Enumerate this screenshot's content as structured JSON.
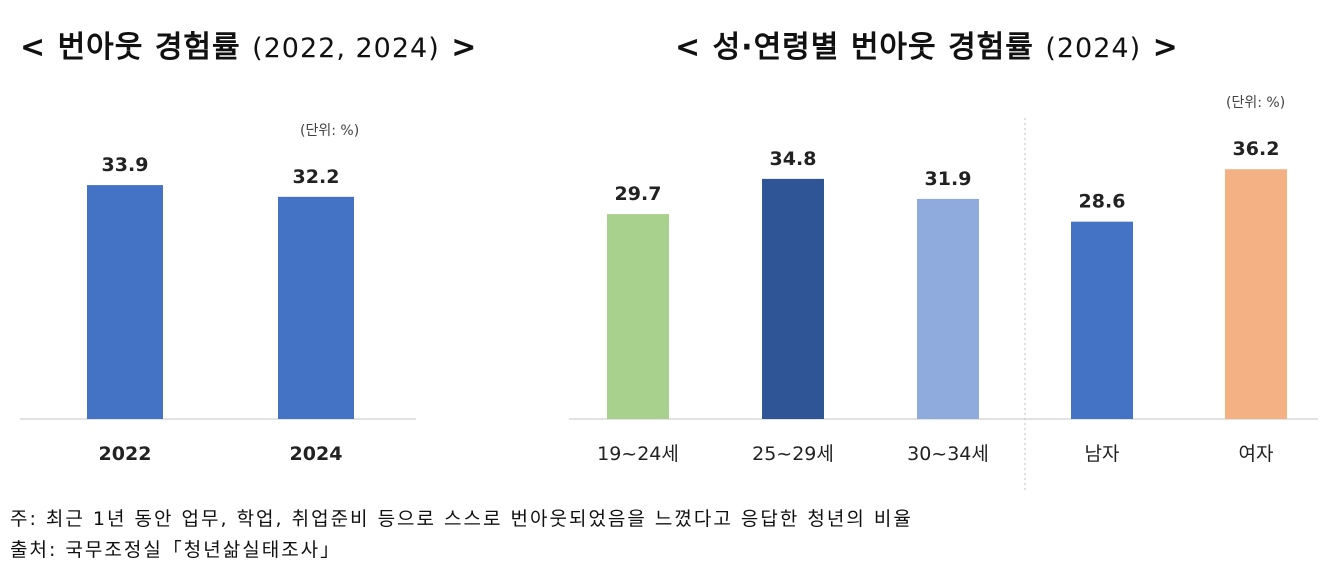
{
  "titles": {
    "left_main": "< 번아웃 경험률",
    "left_year": "(2022, 2024)",
    "left_close": ">",
    "right_main": "< 성·연령별 번아웃 경험률",
    "right_year": "(2024)",
    "right_close": ">"
  },
  "units": {
    "left": "(단위: %)",
    "right": "(단위: %)"
  },
  "chart_data": [
    {
      "type": "bar",
      "title": "< 번아웃 경험률 (2022, 2024) >",
      "categories": [
        "2022",
        "2024"
      ],
      "values": [
        33.9,
        32.2
      ],
      "colors": [
        "#4472C4",
        "#4472C4"
      ],
      "unit": "(단위: %)",
      "ylim": [
        0,
        40
      ],
      "grid": false
    },
    {
      "type": "bar",
      "title": "< 성·연령별 번아웃 경험률 (2024) >",
      "categories": [
        "19~24세",
        "25~29세",
        "30~34세",
        "남자",
        "여자"
      ],
      "values": [
        29.7,
        34.8,
        31.9,
        28.6,
        36.2
      ],
      "colors": [
        "#A9D18E",
        "#2F5597",
        "#8FAADC",
        "#4472C4",
        "#F4B183"
      ],
      "unit": "(단위: %)",
      "ylim": [
        0,
        40
      ],
      "grid": false
    }
  ],
  "footnotes": {
    "note": "주: 최근 1년 동안 업무, 학업, 취업준비 등으로 스스로 번아웃되었음을 느꼈다고 응답한 청년의 비율",
    "source": "출처: 국무조정실「청년삶실태조사」"
  }
}
